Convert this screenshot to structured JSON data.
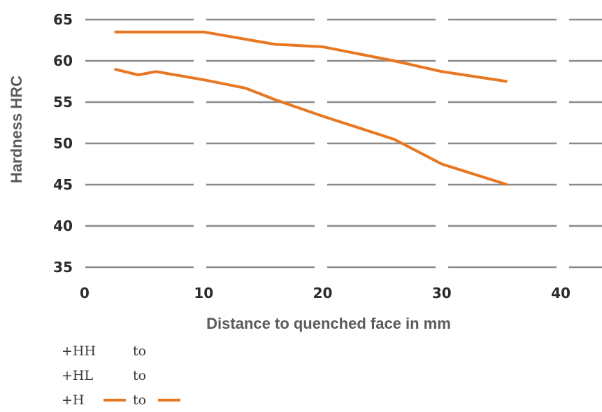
{
  "chart_data": {
    "type": "line",
    "title": "",
    "xlabel": "Distance to quenched face in mm",
    "ylabel": "Hardness HRC",
    "xlim": [
      0,
      40
    ],
    "ylim": [
      35,
      65
    ],
    "xticks": [
      0,
      10,
      20,
      30,
      40
    ],
    "yticks": [
      35,
      40,
      45,
      50,
      55,
      60,
      65
    ],
    "grid": "horizontal dashed",
    "series": [
      {
        "color": "#e87722",
        "x": [
          2.5,
          10,
          16,
          20,
          26,
          30,
          35.5
        ],
        "y": [
          63.5,
          63.5,
          62,
          61.7,
          60,
          58.7,
          57.5
        ]
      },
      {
        "color": "#e87722",
        "x": [
          2.5,
          4.5,
          6,
          10,
          13.5,
          16,
          20,
          26,
          30,
          35.5
        ],
        "y": [
          59,
          58.3,
          58.7,
          57.7,
          56.7,
          55.3,
          53.3,
          50.5,
          47.5,
          45
        ]
      }
    ]
  },
  "legend": [
    {
      "name": "+HH",
      "to": "to",
      "color": ""
    },
    {
      "name": "+HL",
      "to": "to",
      "color": ""
    },
    {
      "name": "+H",
      "to": "to",
      "color": "#e87722"
    }
  ]
}
